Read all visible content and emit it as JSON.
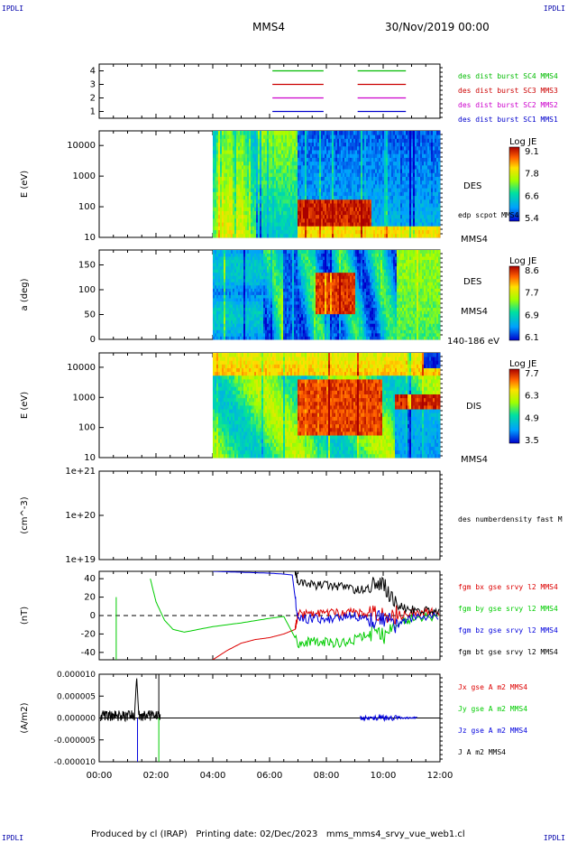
{
  "header": {
    "corner_left_top": "IPDLI",
    "corner_right_top": "IPDLI",
    "corner_left_bottom": "IPDLI",
    "corner_right_bottom": "IPDLI",
    "title": "MMS4",
    "date": "30/Nov/2019 00:00"
  },
  "footer": {
    "text": "Produced by cl (IRAP)   Printing date: 02/Dec/2023   mms_mms4_srvy_vue_web1.cl"
  },
  "x_axis": {
    "ticks": [
      "00:00",
      "02:00",
      "04:00",
      "06:00",
      "08:00",
      "10:00",
      "12:00"
    ],
    "range_hours": [
      0,
      12
    ]
  },
  "chart_data": [
    {
      "type": "line",
      "panel": "burst",
      "y_ticks": [
        "4",
        "3",
        "2",
        "1"
      ],
      "ylim": [
        0.5,
        4.5
      ],
      "series": [
        {
          "name": "des dist burst SC1 MMS1",
          "color": "#0000cc",
          "level": 1,
          "intervals_hours": [
            [
              6.1,
              7.9
            ],
            [
              9.1,
              10.8
            ]
          ]
        },
        {
          "name": "des dist burst SC2 MMS2",
          "color": "#cc00cc",
          "level": 2,
          "intervals_hours": [
            [
              6.1,
              7.9
            ],
            [
              9.1,
              10.8
            ]
          ]
        },
        {
          "name": "des dist burst SC3 MMS3",
          "color": "#cc0000",
          "level": 3,
          "intervals_hours": [
            [
              6.1,
              7.9
            ],
            [
              9.1,
              10.8
            ]
          ]
        },
        {
          "name": "des dist burst SC4 MMS4",
          "color": "#00bb00",
          "level": 4,
          "intervals_hours": [
            [
              6.1,
              7.9
            ],
            [
              9.1,
              10.8
            ]
          ]
        }
      ]
    },
    {
      "type": "heatmap",
      "panel": "des_energy",
      "ylabel": "E (eV)",
      "y_ticks": [
        "10000",
        "1000",
        "100",
        "10"
      ],
      "y_scale": "log",
      "ylim": [
        10,
        30000
      ],
      "data_start_hours": 4.0,
      "colorbar": {
        "title": "Log JE",
        "ticks": [
          "9.1",
          "7.8",
          "6.6",
          "5.4"
        ],
        "range": [
          5.4,
          9.1
        ]
      },
      "labels": [
        "DES",
        "edp scpot MMS4",
        "MMS4"
      ]
    },
    {
      "type": "heatmap",
      "panel": "des_pitch",
      "ylabel": "a (deg)",
      "y_ticks": [
        "150",
        "100",
        "50",
        "0"
      ],
      "ylim": [
        0,
        180
      ],
      "data_start_hours": 4.0,
      "colorbar": {
        "title": "Log JE",
        "ticks": [
          "8.6",
          "7.7",
          "6.9",
          "6.1"
        ],
        "range": [
          6.1,
          8.6
        ]
      },
      "labels": [
        "DES",
        "MMS4",
        "140-186 eV"
      ]
    },
    {
      "type": "heatmap",
      "panel": "dis_energy",
      "ylabel": "E (eV)",
      "y_ticks": [
        "10000",
        "1000",
        "100",
        "10"
      ],
      "y_scale": "log",
      "ylim": [
        10,
        30000
      ],
      "data_start_hours": 4.0,
      "colorbar": {
        "title": "Log JE",
        "ticks": [
          "7.7",
          "6.3",
          "4.9",
          "3.5"
        ],
        "range": [
          3.5,
          7.7
        ]
      },
      "labels": [
        "DIS",
        "MMS4"
      ]
    },
    {
      "type": "line",
      "panel": "density",
      "ylabel": "(cm^-3)",
      "y_ticks": [
        "1e+21",
        "1e+20",
        "1e+19"
      ],
      "y_scale": "log",
      "ylim": [
        1e+19,
        1e+21
      ],
      "series": [
        {
          "name": "des numberdensity fast M",
          "color": "#000000",
          "values": []
        }
      ]
    },
    {
      "type": "line",
      "panel": "fgm",
      "ylabel": "(nT)",
      "y_ticks": [
        "40",
        "20",
        "0",
        "-20",
        "-40"
      ],
      "ylim": [
        -48,
        48
      ],
      "series": [
        {
          "name": "fgm bx gse srvy l2 MMS4",
          "color": "#dd0000",
          "x": [
            4.0,
            4.5,
            5.0,
            5.5,
            6.0,
            6.5,
            6.9,
            7.0,
            7.5,
            8.0,
            8.5,
            9.0,
            9.5,
            10.0,
            10.5,
            11.0,
            11.5,
            12.0
          ],
          "y": [
            -48,
            -38,
            -30,
            -26,
            -24,
            -20,
            -15,
            2,
            1,
            3,
            2,
            3,
            1,
            2,
            0,
            3,
            4,
            2
          ]
        },
        {
          "name": "fgm by gse srvy l2 MMS4",
          "color": "#00cc00",
          "x": [
            1.8,
            2.0,
            2.3,
            2.6,
            3.0,
            4.0,
            5.0,
            6.0,
            6.5,
            7.0,
            7.5,
            8.0,
            8.5,
            9.0,
            9.5,
            10.0,
            10.5,
            11.0,
            12.0
          ],
          "y": [
            40,
            15,
            -5,
            -15,
            -18,
            -12,
            -8,
            -3,
            -1,
            -30,
            -28,
            -29,
            -30,
            -26,
            -20,
            -22,
            -8,
            -3,
            0
          ]
        },
        {
          "name": "fgm bz gse srvy l2 MMS4",
          "color": "#0000dd",
          "x": [
            4.0,
            5.0,
            6.0,
            6.5,
            6.8,
            7.0,
            7.5,
            8.0,
            8.5,
            9.0,
            9.5,
            10.0,
            10.5,
            11.0,
            12.0
          ],
          "y": [
            48,
            47,
            46,
            45,
            44,
            -5,
            -3,
            -4,
            -2,
            0,
            -5,
            -3,
            -10,
            -3,
            -1
          ]
        },
        {
          "name": "fgm bt gse srvy l2 MMS4",
          "color": "#000000",
          "x": [
            6.9,
            7.0,
            7.5,
            8.0,
            8.5,
            9.0,
            9.5,
            10.0,
            10.5,
            11.0,
            11.5,
            12.0
          ],
          "y": [
            48,
            36,
            33,
            33,
            32,
            28,
            30,
            36,
            10,
            6,
            5,
            3
          ]
        }
      ]
    },
    {
      "type": "line",
      "panel": "current",
      "ylabel": "(A/m2)",
      "y_ticks": [
        "0.000010",
        "0.000005",
        "0.000000",
        "-0.000005",
        "-0.000010"
      ],
      "ylim": [
        -1e-05,
        1e-05
      ],
      "series": [
        {
          "name": "Jx gse A m2 MMS4",
          "color": "#dd0000",
          "values": []
        },
        {
          "name": "Jy gse A m2 MMS4",
          "color": "#00cc00",
          "values": []
        },
        {
          "name": "Jz gse A m2 MMS4",
          "color": "#0000dd",
          "values": []
        },
        {
          "name": "J A m2 MMS4",
          "color": "#000000",
          "values": []
        }
      ]
    }
  ]
}
